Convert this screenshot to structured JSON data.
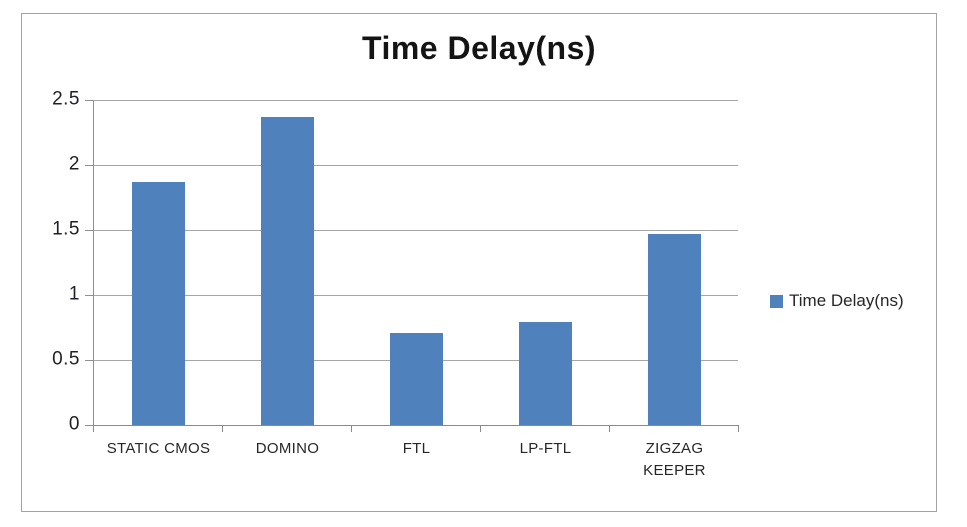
{
  "chart_data": {
    "type": "bar",
    "title": "Time Delay(ns)",
    "categories": [
      "STATIC CMOS",
      "DOMINO",
      "FTL",
      "LP-FTL",
      "ZIGZAG KEEPER"
    ],
    "values": [
      1.87,
      2.37,
      0.71,
      0.79,
      1.47
    ],
    "xlabel": "",
    "ylabel": "",
    "ylim": [
      0,
      2.5
    ],
    "yticks": [
      0,
      0.5,
      1,
      1.5,
      2,
      2.5
    ],
    "ytick_labels": [
      "0",
      "0.5",
      "1",
      "1.5",
      "2",
      "2.5"
    ],
    "grid": true,
    "legend": {
      "label": "Time Delay(ns)",
      "position": "right"
    },
    "colors": {
      "bar": "#4f81bd",
      "gridline": "#a6a6a6",
      "axis": "#8f8f8f",
      "title_text": "#141414",
      "label_text": "#262626",
      "frame_border": "#a3a3a3"
    }
  }
}
